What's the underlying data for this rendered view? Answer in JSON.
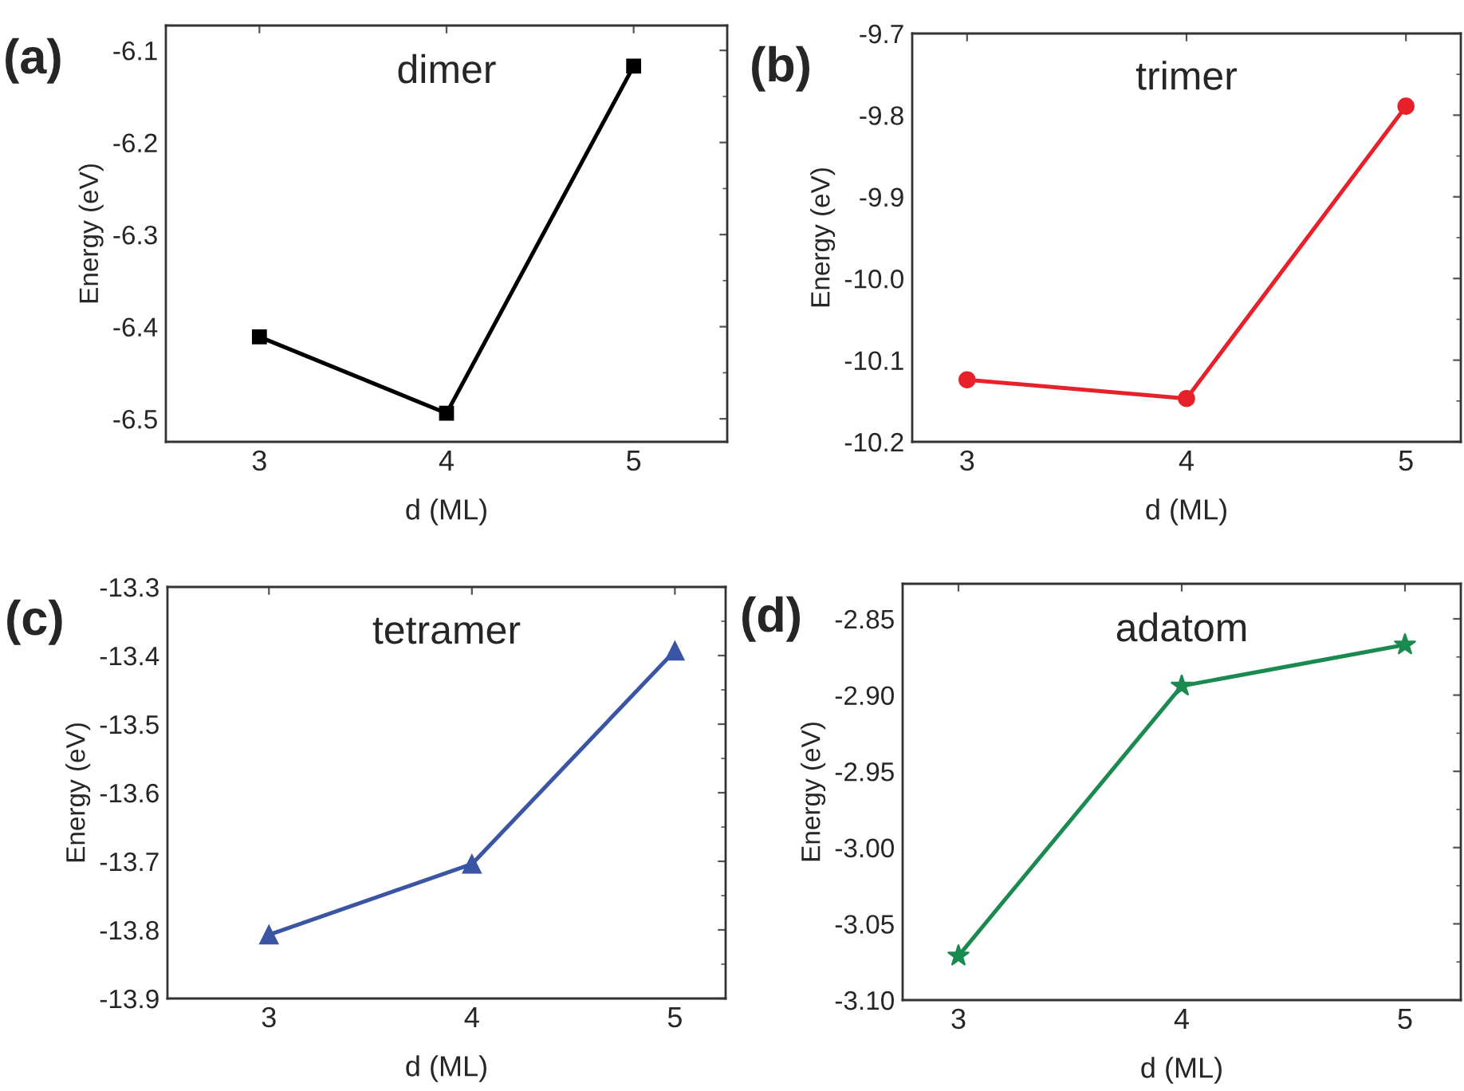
{
  "chart_data": [
    {
      "type": "line",
      "title": "dimer",
      "annotations": [
        "(a)"
      ],
      "xlabel": "d (ML)",
      "ylabel": "Energy (eV)",
      "x": [
        3,
        4,
        5
      ],
      "xlim": [
        2.5,
        5.5
      ],
      "xticks": [
        3,
        4,
        5
      ],
      "ylim": [
        -6.525,
        -6.073
      ],
      "yticks": [
        -6.5,
        -6.4,
        -6.3,
        -6.2,
        -6.1
      ],
      "marker": "square",
      "grid": false,
      "series": [
        {
          "color": "#000000",
          "values": [
            -6.411,
            -6.494,
            -6.117
          ]
        }
      ]
    },
    {
      "type": "line",
      "title": "trimer",
      "annotations": [
        "(b)"
      ],
      "xlabel": "d (ML)",
      "ylabel": "Energy (eV)",
      "x": [
        3,
        4,
        5
      ],
      "xlim": [
        2.75,
        5.25
      ],
      "xticks": [
        3,
        4,
        5
      ],
      "ylim": [
        -10.2,
        -9.7
      ],
      "yticks": [
        -10.2,
        -10.1,
        {
          "value": -10.0,
          "label": "-10.0"
        },
        -9.9,
        -9.8,
        -9.7
      ],
      "marker": "circle",
      "grid": false,
      "series": [
        {
          "color": "#e8202a",
          "values": [
            -10.124,
            -10.147,
            -9.789
          ]
        }
      ]
    },
    {
      "type": "line",
      "title": "tetramer",
      "annotations": [
        "(c)"
      ],
      "xlabel": "d (ML)",
      "ylabel": "Energy (eV)",
      "x": [
        3,
        4,
        5
      ],
      "xlim": [
        2.5,
        5.25
      ],
      "xticks": [
        3,
        4,
        5
      ],
      "ylim": [
        -13.9,
        -13.3
      ],
      "yticks": [
        -13.9,
        -13.8,
        -13.7,
        -13.6,
        -13.5,
        -13.4,
        -13.3
      ],
      "marker": "triangle",
      "grid": false,
      "series": [
        {
          "color": "#3b55a5",
          "values": [
            -13.807,
            -13.704,
            -13.393
          ]
        }
      ]
    },
    {
      "type": "line",
      "title": "adatom",
      "annotations": [
        "(d)"
      ],
      "xlabel": "d (ML)",
      "ylabel": "Energy (eV)",
      "x": [
        3,
        4,
        5
      ],
      "xlim": [
        2.75,
        5.25
      ],
      "xticks": [
        3,
        4,
        5
      ],
      "ylim": [
        -3.1,
        -2.827
      ],
      "yticks": [
        {
          "value": -3.1,
          "label": "-3.10"
        },
        {
          "value": -3.05,
          "label": "-3.05"
        },
        {
          "value": -3.0,
          "label": "-3.00"
        },
        {
          "value": -2.95,
          "label": "-2.95"
        },
        {
          "value": -2.9,
          "label": "-2.90"
        },
        {
          "value": -2.85,
          "label": "-2.85"
        }
      ],
      "marker": "star",
      "grid": false,
      "series": [
        {
          "color": "#1a8a50",
          "values": [
            -3.071,
            -2.894,
            -2.867
          ]
        }
      ]
    }
  ]
}
